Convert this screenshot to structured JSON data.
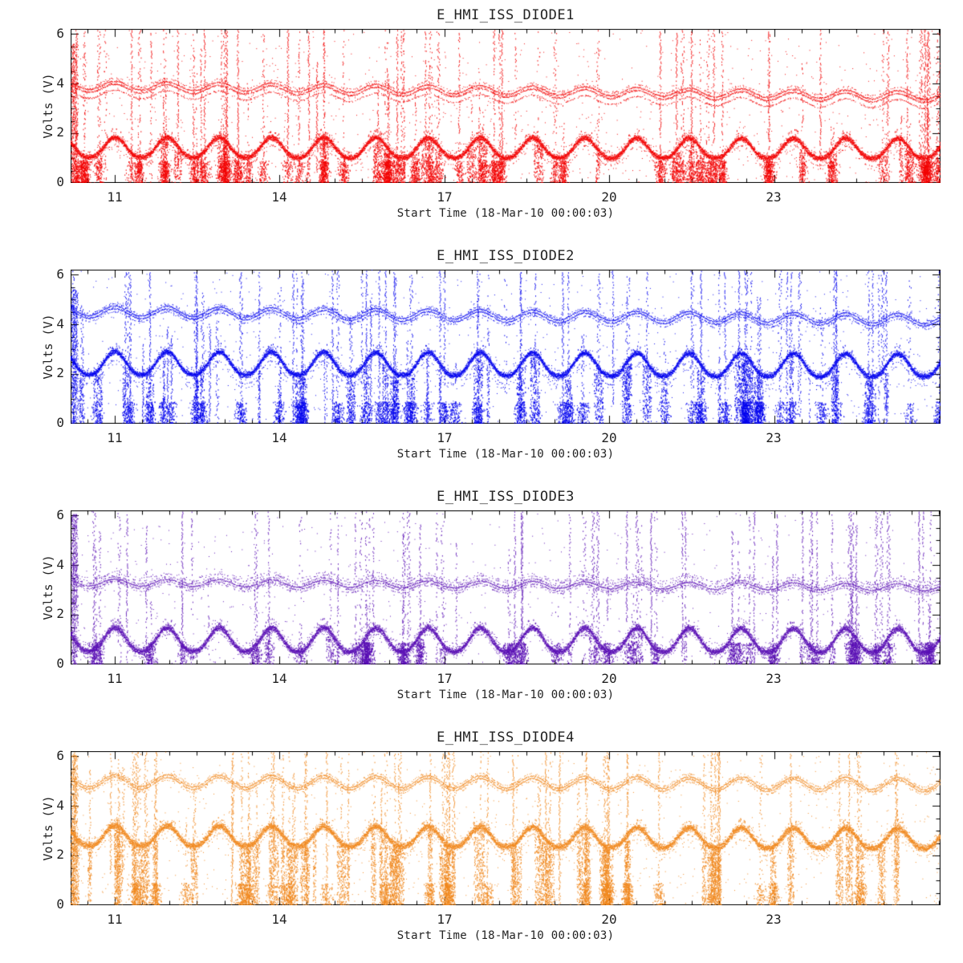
{
  "figure": {
    "background": "#ffffff",
    "axis_color": "#000000",
    "text_color": "#222222"
  },
  "chart_data": {
    "type": "scatter",
    "x_label": "Start Time (18-Mar-10 00:00:03)",
    "y_label": "Volts (V)",
    "x_ticks": [
      11,
      14,
      17,
      20,
      23
    ],
    "x_tick_labels": [
      "11",
      "14",
      "17",
      "20",
      "23"
    ],
    "y_ticks": [
      0,
      2,
      4,
      6
    ],
    "y_tick_labels": [
      "0",
      "2",
      "4",
      "6"
    ],
    "x_range": [
      10.2,
      26.03
    ],
    "y_range": [
      0,
      6.2
    ],
    "x_minor_step": 0.5,
    "y_minor_step": 0.5,
    "wave_period": 0.95,
    "wave_peak_x": 11.0,
    "panels": [
      {
        "title": "E_HMI_ISS_DIODE1",
        "color": "#f20000",
        "seed": 101,
        "lower": {
          "trough": 1.05,
          "peak": 1.85,
          "drift": -0.05,
          "sigma": 0.07,
          "echoes": [
            [
              -0.3,
              0.2
            ],
            [
              -0.45,
              0.07
            ],
            [
              0.22,
              0.1
            ]
          ]
        },
        "upper": {
          "center": 3.88,
          "amp": 0.17,
          "drift": -0.42,
          "lines": [
            [
              0.08,
              0.85
            ],
            [
              -0.04,
              0.8
            ],
            [
              -0.28,
              0.45
            ],
            [
              0.2,
              0.28
            ]
          ]
        },
        "spikes": 78,
        "curtain": 0.8,
        "curtain_fill": 0.45,
        "bottom_blob": 0.7,
        "scatter": 950,
        "edge_top": 5.6
      },
      {
        "title": "E_HMI_ISS_DIODE2",
        "color": "#0000ee",
        "seed": 202,
        "lower": {
          "trough": 2.0,
          "peak": 2.92,
          "drift": -0.1,
          "sigma": 0.07,
          "echoes": [
            [
              -0.35,
              0.2
            ],
            [
              -0.52,
              0.08
            ],
            [
              0.2,
              0.1
            ]
          ]
        },
        "upper": {
          "center": 4.52,
          "amp": 0.2,
          "drift": -0.33,
          "lines": [
            [
              0.05,
              0.9
            ],
            [
              -0.06,
              0.85
            ],
            [
              -0.18,
              0.3
            ],
            [
              0.14,
              0.25
            ]
          ]
        },
        "spikes": 85,
        "curtain": 0.55,
        "curtain_fill": 0.35,
        "bottom_blob": 0.5,
        "scatter": 950,
        "edge_top": 5.4
      },
      {
        "title": "E_HMI_ISS_DIODE3",
        "color": "#5a0fb4",
        "seed": 303,
        "lower": {
          "trough": 0.55,
          "peak": 1.5,
          "drift": -0.05,
          "sigma": 0.08,
          "echoes": [
            [
              -0.25,
              0.18
            ],
            [
              0.22,
              0.12
            ],
            [
              0.35,
              0.07
            ]
          ]
        },
        "upper": {
          "center": 3.32,
          "amp": 0.14,
          "drift": -0.2,
          "lines": [
            [
              0.0,
              0.9
            ],
            [
              0.1,
              0.4
            ],
            [
              -0.1,
              0.45
            ],
            [
              0.22,
              0.22
            ],
            [
              -0.2,
              0.2
            ],
            [
              0.32,
              0.12
            ]
          ]
        },
        "spikes": 70,
        "curtain": 0.5,
        "curtain_fill": 0.35,
        "bottom_blob": 0.5,
        "scatter": 650,
        "edge_top": 6.05
      },
      {
        "title": "E_HMI_ISS_DIODE4",
        "color": "#f0871e",
        "seed": 404,
        "lower": {
          "trough": 2.42,
          "peak": 3.22,
          "drift": -0.12,
          "sigma": 0.085,
          "echoes": [
            [
              -0.3,
              0.18
            ],
            [
              -0.48,
              0.08
            ],
            [
              0.25,
              0.12
            ]
          ]
        },
        "upper": {
          "center": 4.98,
          "amp": 0.24,
          "drift": -0.12,
          "lines": [
            [
              0.05,
              0.9
            ],
            [
              -0.05,
              0.85
            ],
            [
              0.15,
              0.25
            ],
            [
              -0.16,
              0.2
            ]
          ]
        },
        "spikes": 80,
        "curtain": 0.7,
        "curtain_fill": 0.4,
        "bottom_blob": 0.45,
        "scatter": 950,
        "edge_top": 6.05
      }
    ]
  }
}
